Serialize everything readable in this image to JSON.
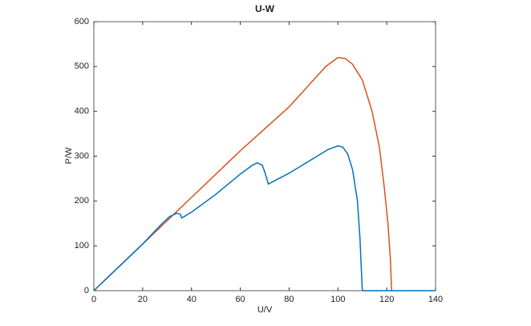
{
  "chart_data": {
    "type": "line",
    "title": "U-W",
    "xlabel": "U/V",
    "ylabel": "P/W",
    "xlim": [
      0,
      140
    ],
    "ylim": [
      0,
      600
    ],
    "xticks": [
      0,
      20,
      40,
      60,
      80,
      100,
      120,
      140
    ],
    "yticks": [
      0,
      100,
      200,
      300,
      400,
      500,
      600
    ],
    "grid": false,
    "series": [
      {
        "color": "#d95319",
        "x": [
          0,
          20,
          40,
          60,
          80,
          90,
          95,
          100,
          103,
          106,
          110,
          114,
          117,
          119,
          120.5,
          121.5,
          122
        ],
        "values": [
          0,
          104,
          208,
          312,
          410,
          470,
          500,
          520,
          518,
          505,
          470,
          400,
          320,
          230,
          150,
          70,
          0
        ]
      },
      {
        "color": "#0072bd",
        "x": [
          0,
          20,
          28,
          31,
          34,
          35.5,
          36,
          40,
          50,
          60,
          65,
          67,
          69,
          70,
          71.5,
          80,
          90,
          96,
          100,
          102,
          104,
          106,
          108,
          109,
          109.5,
          110,
          140
        ],
        "values": [
          0,
          104,
          150,
          165,
          173,
          170,
          162,
          175,
          215,
          260,
          280,
          285,
          280,
          265,
          238,
          262,
          295,
          315,
          323,
          320,
          305,
          270,
          200,
          120,
          60,
          0,
          0
        ]
      }
    ]
  }
}
